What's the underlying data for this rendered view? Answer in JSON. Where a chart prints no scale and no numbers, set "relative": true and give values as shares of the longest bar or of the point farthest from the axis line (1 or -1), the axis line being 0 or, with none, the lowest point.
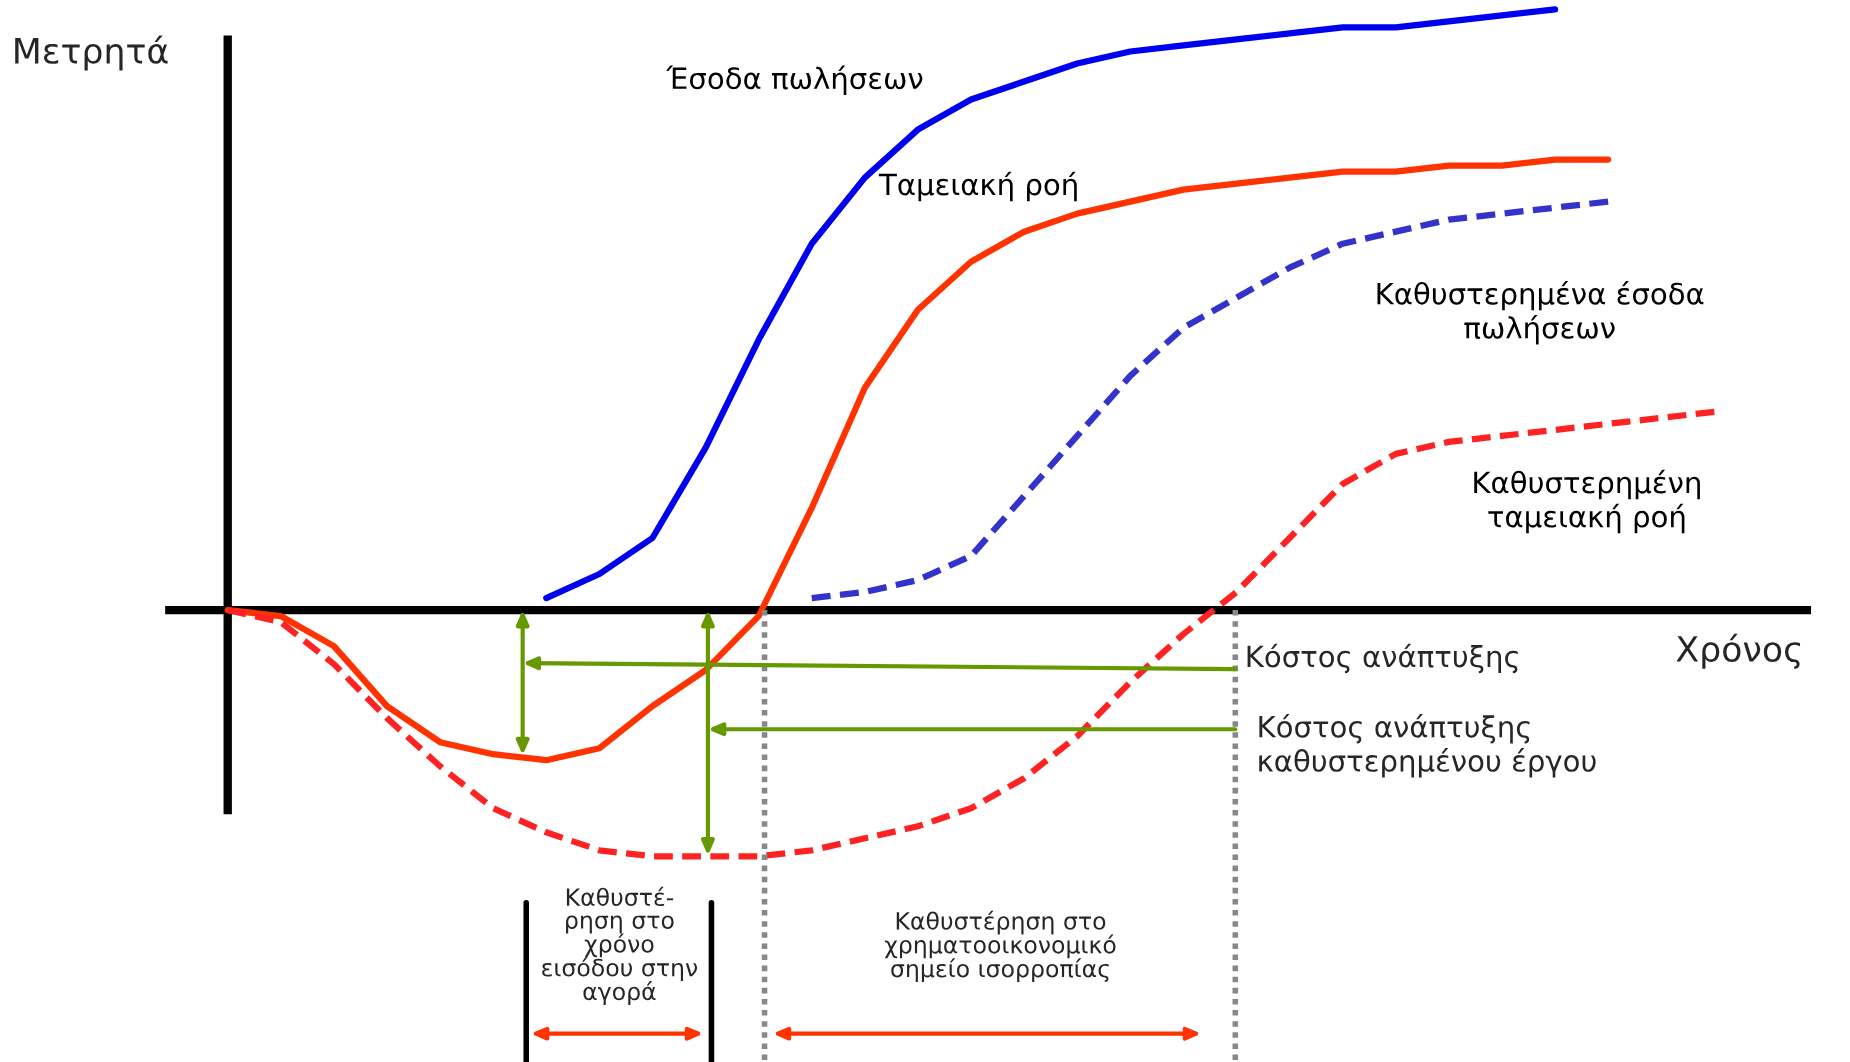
{
  "chart_data": {
    "type": "line",
    "relative": true,
    "xlabel": "Χρόνος",
    "ylabel": "Μετρητά",
    "categories": [
      null,
      null,
      null,
      null,
      null,
      null,
      null,
      null,
      null,
      null,
      null,
      null,
      null,
      null,
      null,
      null,
      null,
      null,
      null,
      null,
      null,
      null,
      null,
      null,
      null,
      null,
      null,
      null,
      null
    ],
    "series": [
      {
        "name": "Έσοδα πωλήσεων",
        "color": "#0000ee",
        "line_style": "solid",
        "values": [
          null,
          null,
          null,
          null,
          null,
          null,
          0.02,
          0.06,
          0.12,
          0.27,
          0.45,
          0.61,
          0.72,
          0.8,
          0.85,
          0.88,
          0.91,
          0.93,
          0.94,
          0.95,
          0.96,
          0.97,
          0.97,
          0.98,
          0.99,
          1,
          null,
          null,
          null
        ]
      },
      {
        "name": "Ταμειακή ροή",
        "color": "#ff3300",
        "line_style": "solid",
        "values": [
          0,
          -0.01,
          -0.06,
          -0.16,
          -0.22,
          -0.24,
          -0.25,
          -0.23,
          -0.16,
          -0.1,
          -0.01,
          0.17,
          0.37,
          0.5,
          0.58,
          0.63,
          0.66,
          0.68,
          0.7,
          0.71,
          0.72,
          0.73,
          0.73,
          0.74,
          0.74,
          0.75,
          0.75,
          null,
          null
        ]
      },
      {
        "name": "Καθυστερημένα έσοδα\nπωλήσεων",
        "color": "#3333cc",
        "line_style": "dashed",
        "values": [
          null,
          null,
          null,
          null,
          null,
          null,
          null,
          null,
          null,
          null,
          null,
          0.02,
          0.03,
          0.05,
          0.09,
          0.19,
          0.29,
          0.39,
          0.47,
          0.52,
          0.57,
          0.61,
          0.63,
          0.65,
          0.66,
          0.67,
          0.68,
          null,
          null
        ]
      },
      {
        "name": "Καθυστερημένη\nταμειακή ροή",
        "color": "#ff2222",
        "line_style": "dashed",
        "values": [
          0,
          -0.02,
          -0.09,
          -0.18,
          -0.26,
          -0.33,
          -0.37,
          -0.4,
          -0.41,
          -0.41,
          -0.41,
          -0.4,
          -0.38,
          -0.36,
          -0.33,
          -0.28,
          -0.21,
          -0.12,
          -0.04,
          0.03,
          0.12,
          0.21,
          0.26,
          0.28,
          0.29,
          0.3,
          0.31,
          0.32,
          0.33
        ]
      }
    ],
    "annotations": [
      "Κόστος ανάπτυξης",
      "Κόστος ανάπτυξης\nκαθυστερημένου έργου",
      "Καθυστέ-\nρηση στο\nχρόνο\nεισόδου στην\nαγορά",
      "Καθυστέρηση στο\nχρηματοοικονομικό\nσημείο ισορροπίας"
    ],
    "legend": false,
    "marker": "none"
  }
}
